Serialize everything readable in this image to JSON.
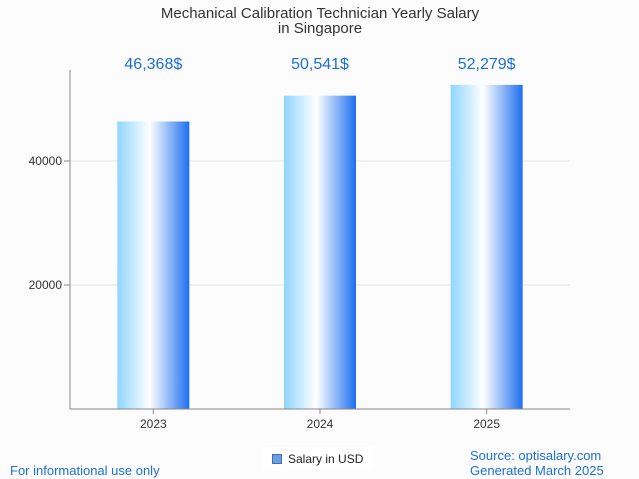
{
  "chart_data": {
    "type": "bar",
    "title": "Mechanical Calibration Technician Yearly Salary",
    "subtitle": "in Singapore",
    "categories": [
      "2023",
      "2024",
      "2025"
    ],
    "values": [
      46368,
      50541,
      52279
    ],
    "value_labels": [
      "46,368$",
      "50,541$",
      "52,279$"
    ],
    "yticks": [
      20000,
      40000
    ],
    "ylim": [
      0,
      55000
    ],
    "grid": true,
    "legend": {
      "label": "Salary in USD",
      "position": "bottom-center"
    },
    "colors": {
      "bar_edge": "#1e6ff0",
      "bar_light": "#ffffff",
      "bar_left": "#8fd6ff",
      "value_label": "#1a6fd8"
    }
  },
  "footer": {
    "disclaimer": "For informational use only",
    "source": "Source: optisalary.com",
    "generated": "Generated March 2025"
  }
}
